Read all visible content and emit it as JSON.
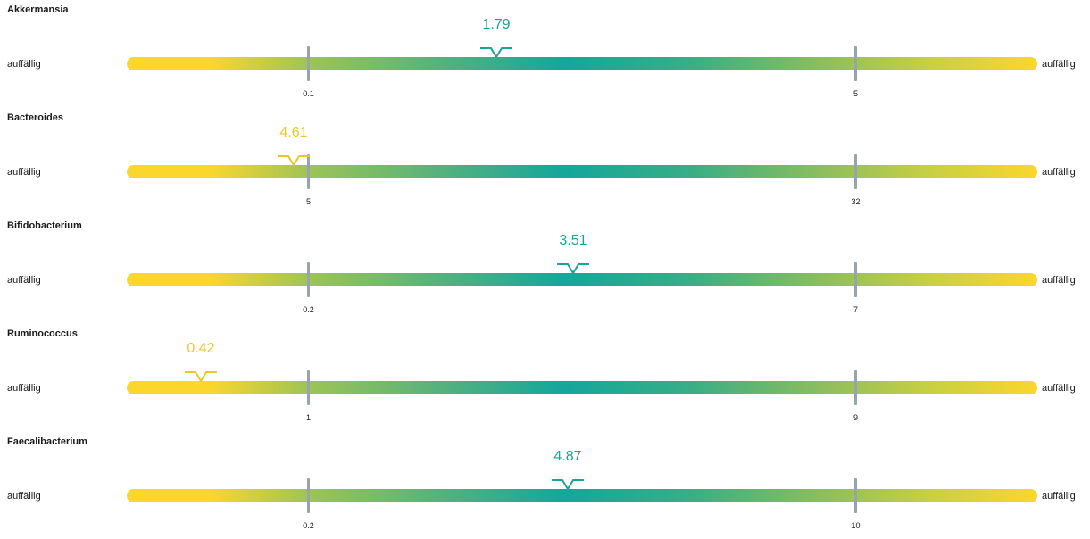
{
  "side_label": "auffällig",
  "colors": {
    "normal": "#1aa39a",
    "abnormal": "#eec62c"
  },
  "rows": [
    {
      "name": "Akkermansia",
      "low": "0.1",
      "high": "5",
      "value": "1.79",
      "status": "normal"
    },
    {
      "name": "Bacteroides",
      "low": "5",
      "high": "32",
      "value": "4.61",
      "status": "abnormal"
    },
    {
      "name": "Bifidobacterium",
      "low": "0.2",
      "high": "7",
      "value": "3.51",
      "status": "normal"
    },
    {
      "name": "Ruminococcus",
      "low": "1",
      "high": "9",
      "value": "0.42",
      "status": "abnormal"
    },
    {
      "name": "Faecalibacterium",
      "low": "0.2",
      "high": "10",
      "value": "4.87",
      "status": "normal"
    }
  ]
}
